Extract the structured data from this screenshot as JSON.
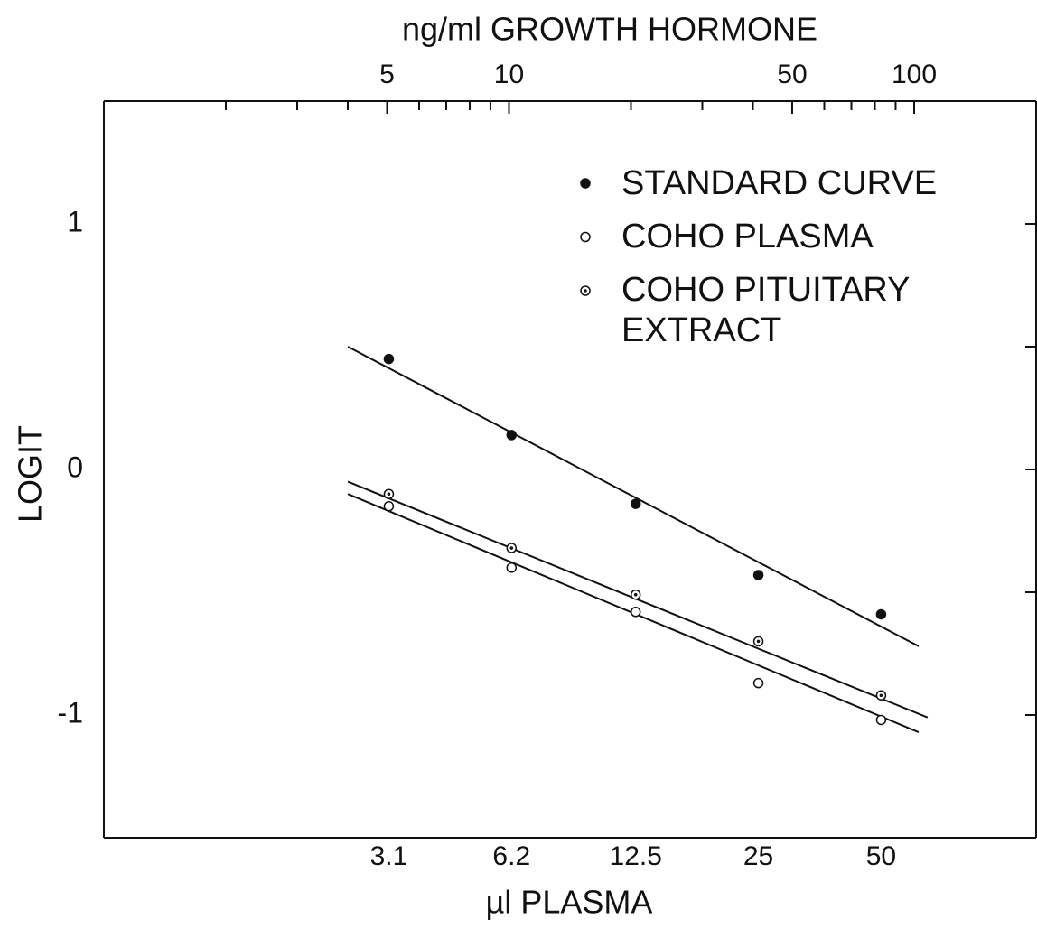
{
  "chart_data": {
    "type": "scatter",
    "x2label": "ng/ml GROWTH HORMONE",
    "xlabel": "µl PLASMA",
    "ylabel": "LOGIT",
    "xscale": "log",
    "xlim": [
      0.62,
      120
    ],
    "xticks": [
      3.1,
      6.2,
      12.5,
      25,
      50
    ],
    "x2lim": [
      1,
      200
    ],
    "x2ticks": [
      5,
      10,
      50,
      100
    ],
    "x2minor_ticks": [
      2,
      3,
      4,
      6,
      7,
      8,
      9,
      20,
      30,
      40,
      60,
      70,
      80,
      90
    ],
    "ylim": [
      -1.5,
      1.5
    ],
    "yticks": [
      -1,
      0,
      1
    ],
    "y_right_ticks": [
      -1,
      -0.5,
      0,
      0.5,
      1
    ],
    "legend": "upper right",
    "series": [
      {
        "name": "STANDARD CURVE",
        "color": "#111111",
        "marker": "filled",
        "x": [
          3.1,
          6.2,
          12.5,
          25,
          50
        ],
        "values": [
          0.45,
          0.14,
          -0.14,
          -0.43,
          -0.59
        ],
        "fit": {
          "x": [
            2.46,
            61.8
          ],
          "y": [
            0.5,
            -0.72
          ]
        }
      },
      {
        "name": "COHO PLASMA",
        "color": "#111111",
        "marker": "open",
        "x": [
          3.1,
          6.2,
          12.5,
          25,
          50
        ],
        "values": [
          -0.15,
          -0.4,
          -0.58,
          -0.87,
          -1.02
        ],
        "fit": {
          "x": [
            2.46,
            61.8
          ],
          "y": [
            -0.1,
            -1.07
          ]
        }
      },
      {
        "name": "COHO PITUITARY EXTRACT",
        "color": "#111111",
        "marker": "dotted",
        "x": [
          3.1,
          6.2,
          12.5,
          25,
          50
        ],
        "values": [
          -0.1,
          -0.32,
          -0.51,
          -0.7,
          -0.92
        ],
        "fit": {
          "x": [
            2.46,
            65
          ],
          "y": [
            -0.05,
            -1.01
          ]
        }
      }
    ]
  }
}
